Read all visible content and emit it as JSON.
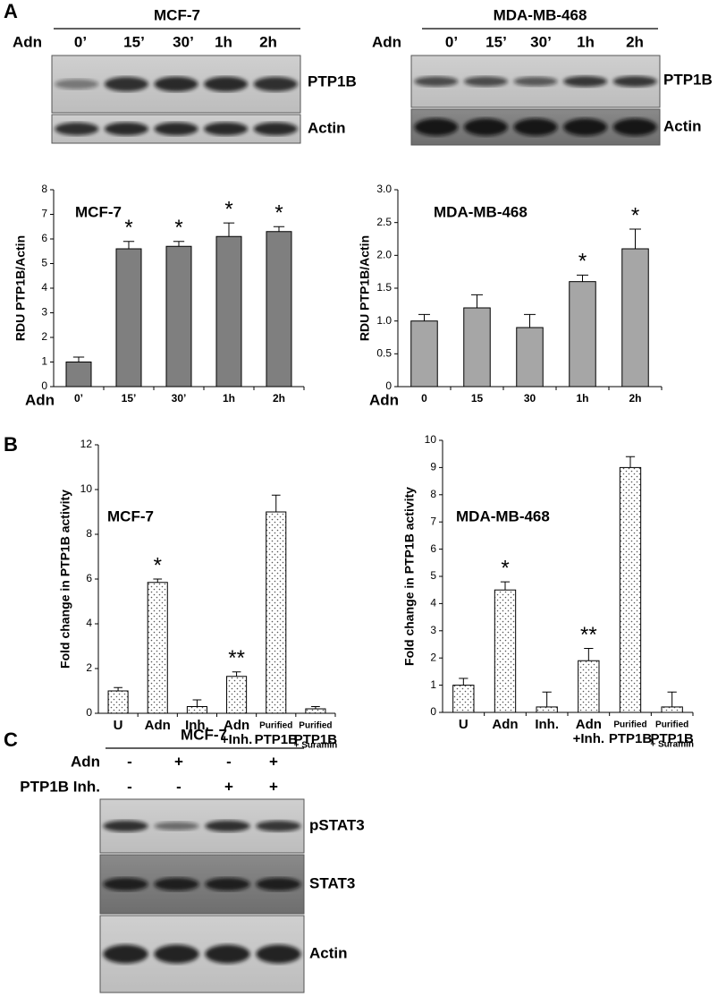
{
  "figure": {
    "panels": [
      "A",
      "B",
      "C"
    ],
    "blot_a1": {
      "cell_line": "MCF-7",
      "treatment": "Adn",
      "lanes": [
        "0’",
        "15’",
        "30’",
        "1h",
        "2h"
      ],
      "rows": [
        "PTP1B",
        "Actin"
      ]
    },
    "blot_a2": {
      "cell_line": "MDA-MB-468",
      "treatment": "Adn",
      "lanes": [
        "0’",
        "15’",
        "30’",
        "1h",
        "2h"
      ],
      "rows": [
        "PTP1B",
        "Actin"
      ]
    },
    "blot_c": {
      "cell_line": "MCF-7",
      "treatments": [
        {
          "name": "Adn",
          "lanes": [
            "-",
            "+",
            "-",
            "+"
          ]
        },
        {
          "name": "PTP1B Inh.",
          "lanes": [
            "-",
            "-",
            "+",
            "+"
          ]
        }
      ],
      "rows": [
        "pSTAT3",
        "STAT3",
        "Actin"
      ]
    }
  },
  "chart_data": [
    {
      "type": "bar",
      "title": "MCF-7",
      "y_label": "RDU PTP1B/Actin",
      "x_label": "Adn",
      "categories": [
        "0’",
        "15’",
        "30’",
        "1h",
        "2h"
      ],
      "values": [
        1,
        5.6,
        5.7,
        6.1,
        6.3
      ],
      "errors": [
        0.2,
        0.3,
        0.2,
        0.55,
        0.2
      ],
      "annotations": [
        null,
        "*",
        "*",
        "*",
        "*"
      ],
      "color": "#7f7f7f",
      "fill": "solid",
      "ylim": [
        0,
        8
      ],
      "yticks": [
        0,
        1,
        2,
        3,
        4,
        5,
        6,
        7,
        8
      ]
    },
    {
      "type": "bar",
      "title": "MDA-MB-468",
      "y_label": "RDU PTP1B/Actin",
      "x_label": "Adn",
      "categories": [
        "0",
        "15",
        "30",
        "1h",
        "2h"
      ],
      "values": [
        1,
        1.2,
        0.9,
        1.6,
        2.1
      ],
      "errors": [
        0.1,
        0.2,
        0.2,
        0.1,
        0.3
      ],
      "annotations": [
        null,
        null,
        null,
        "*",
        "*"
      ],
      "color": "#a6a6a6",
      "fill": "solid",
      "ylim": [
        0,
        3
      ],
      "yticks": [
        0,
        0.5,
        {
          "value": 1,
          "label": "1.0"
        },
        1.5,
        {
          "value": 2,
          "label": "2.0"
        },
        2.5,
        {
          "value": 3,
          "label": "3.0"
        }
      ]
    },
    {
      "type": "bar",
      "title": "MCF-7",
      "y_label": "Fold change in PTP1B activity",
      "categories": [
        [
          "U"
        ],
        [
          "Adn"
        ],
        [
          "Inh."
        ],
        [
          "Adn",
          "+Inh."
        ],
        [
          "Purified",
          "PTP1B"
        ],
        [
          "Purified",
          "PTP1B",
          "+ Suramin"
        ]
      ],
      "values": [
        1,
        5.85,
        0.3,
        1.65,
        9,
        0.2
      ],
      "errors": [
        0.15,
        0.15,
        0.3,
        0.2,
        0.75,
        0.1
      ],
      "annotations": [
        null,
        "*",
        null,
        "**",
        null,
        null
      ],
      "color": "#ffffff",
      "fill": "dotted",
      "ylim": [
        0,
        12
      ],
      "yticks": [
        0,
        2,
        4,
        6,
        8,
        10,
        12
      ]
    },
    {
      "type": "bar",
      "title": "MDA-MB-468",
      "y_label": "Fold change in PTP1B activity",
      "categories": [
        [
          "U"
        ],
        [
          "Adn"
        ],
        [
          "Inh."
        ],
        [
          "Adn",
          "+Inh."
        ],
        [
          "Purified",
          "PTP1B"
        ],
        [
          "Purified",
          "PTP1B",
          "+ Suramin"
        ]
      ],
      "values": [
        1,
        4.5,
        0.2,
        1.9,
        9,
        0.2
      ],
      "errors": [
        0.25,
        0.3,
        0.55,
        0.45,
        0.4,
        0.55
      ],
      "annotations": [
        null,
        "*",
        null,
        "**",
        null,
        null
      ],
      "color": "#ffffff",
      "fill": "dotted",
      "ylim": [
        0,
        10
      ],
      "yticks": [
        0,
        1,
        2,
        3,
        4,
        5,
        6,
        7,
        8,
        9,
        10
      ]
    }
  ]
}
